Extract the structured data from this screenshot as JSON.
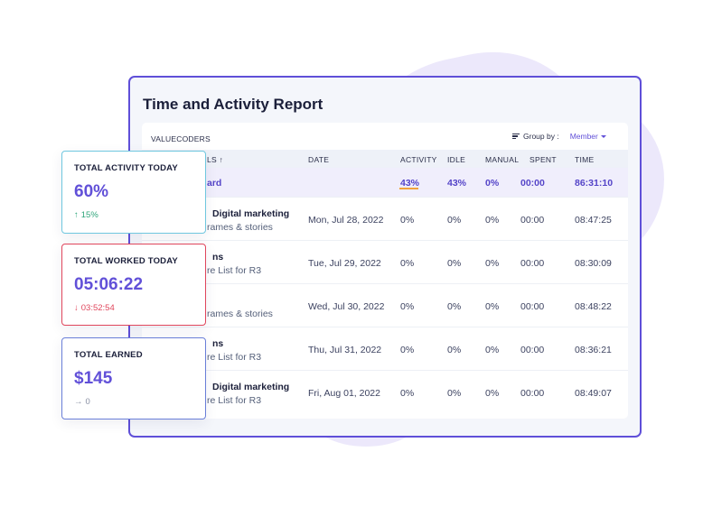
{
  "report": {
    "title": "Time and Activity Report",
    "organization": "VALUECODERS",
    "group_by_label": "Group by :",
    "group_by_value": "Member"
  },
  "table": {
    "columns": [
      "LS ↑",
      "DATE",
      "ACTIVITY",
      "IDLE",
      "MANUAL",
      "SPENT",
      "TIME"
    ],
    "summary": {
      "label": "ard",
      "activity": "43%",
      "idle": "43%",
      "manual": "0%",
      "spent": "00:00",
      "time": "86:31:10"
    },
    "rows": [
      {
        "project": "Digital marketing",
        "task": "rames & stories",
        "date": "Mon, Jul 28, 2022",
        "activity": "0%",
        "idle": "0%",
        "manual": "0%",
        "spent": "00:00",
        "time": "08:47:25"
      },
      {
        "project": "ns",
        "task": "re List for R3",
        "date": "Tue, Jul 29, 2022",
        "activity": "0%",
        "idle": "0%",
        "manual": "0%",
        "spent": "00:00",
        "time": "08:30:09"
      },
      {
        "project": "",
        "task": "rames & stories",
        "date": "Wed, Jul 30, 2022",
        "activity": "0%",
        "idle": "0%",
        "manual": "0%",
        "spent": "00:00",
        "time": "08:48:22"
      },
      {
        "project": "ns",
        "task": "re List for R3",
        "date": "Thu, Jul 31, 2022",
        "activity": "0%",
        "idle": "0%",
        "manual": "0%",
        "spent": "00:00",
        "time": "08:36:21"
      },
      {
        "project": "Digital marketing",
        "task": "re List for R3",
        "date": "Fri, Aug 01, 2022",
        "activity": "0%",
        "idle": "0%",
        "manual": "0%",
        "spent": "00:00",
        "time": "08:49:07"
      }
    ]
  },
  "cards": [
    {
      "label": "TOTAL ACTIVITY TODAY",
      "value": "60%",
      "delta_arrow": "↑",
      "delta": "15%",
      "trend": "up"
    },
    {
      "label": "TOTAL WORKED TODAY",
      "value": "05:06:22",
      "delta_arrow": "↓",
      "delta": "03:52:54",
      "trend": "down"
    },
    {
      "label": "TOTAL EARNED",
      "value": "$145",
      "delta_arrow": "→",
      "delta": "0",
      "trend": "flat"
    }
  ],
  "colors": {
    "accent": "#6150d8",
    "frame": "#5f4fd8",
    "up": "#2fa57a",
    "down": "#e0465c",
    "activity_underline": "#f2a23c"
  }
}
